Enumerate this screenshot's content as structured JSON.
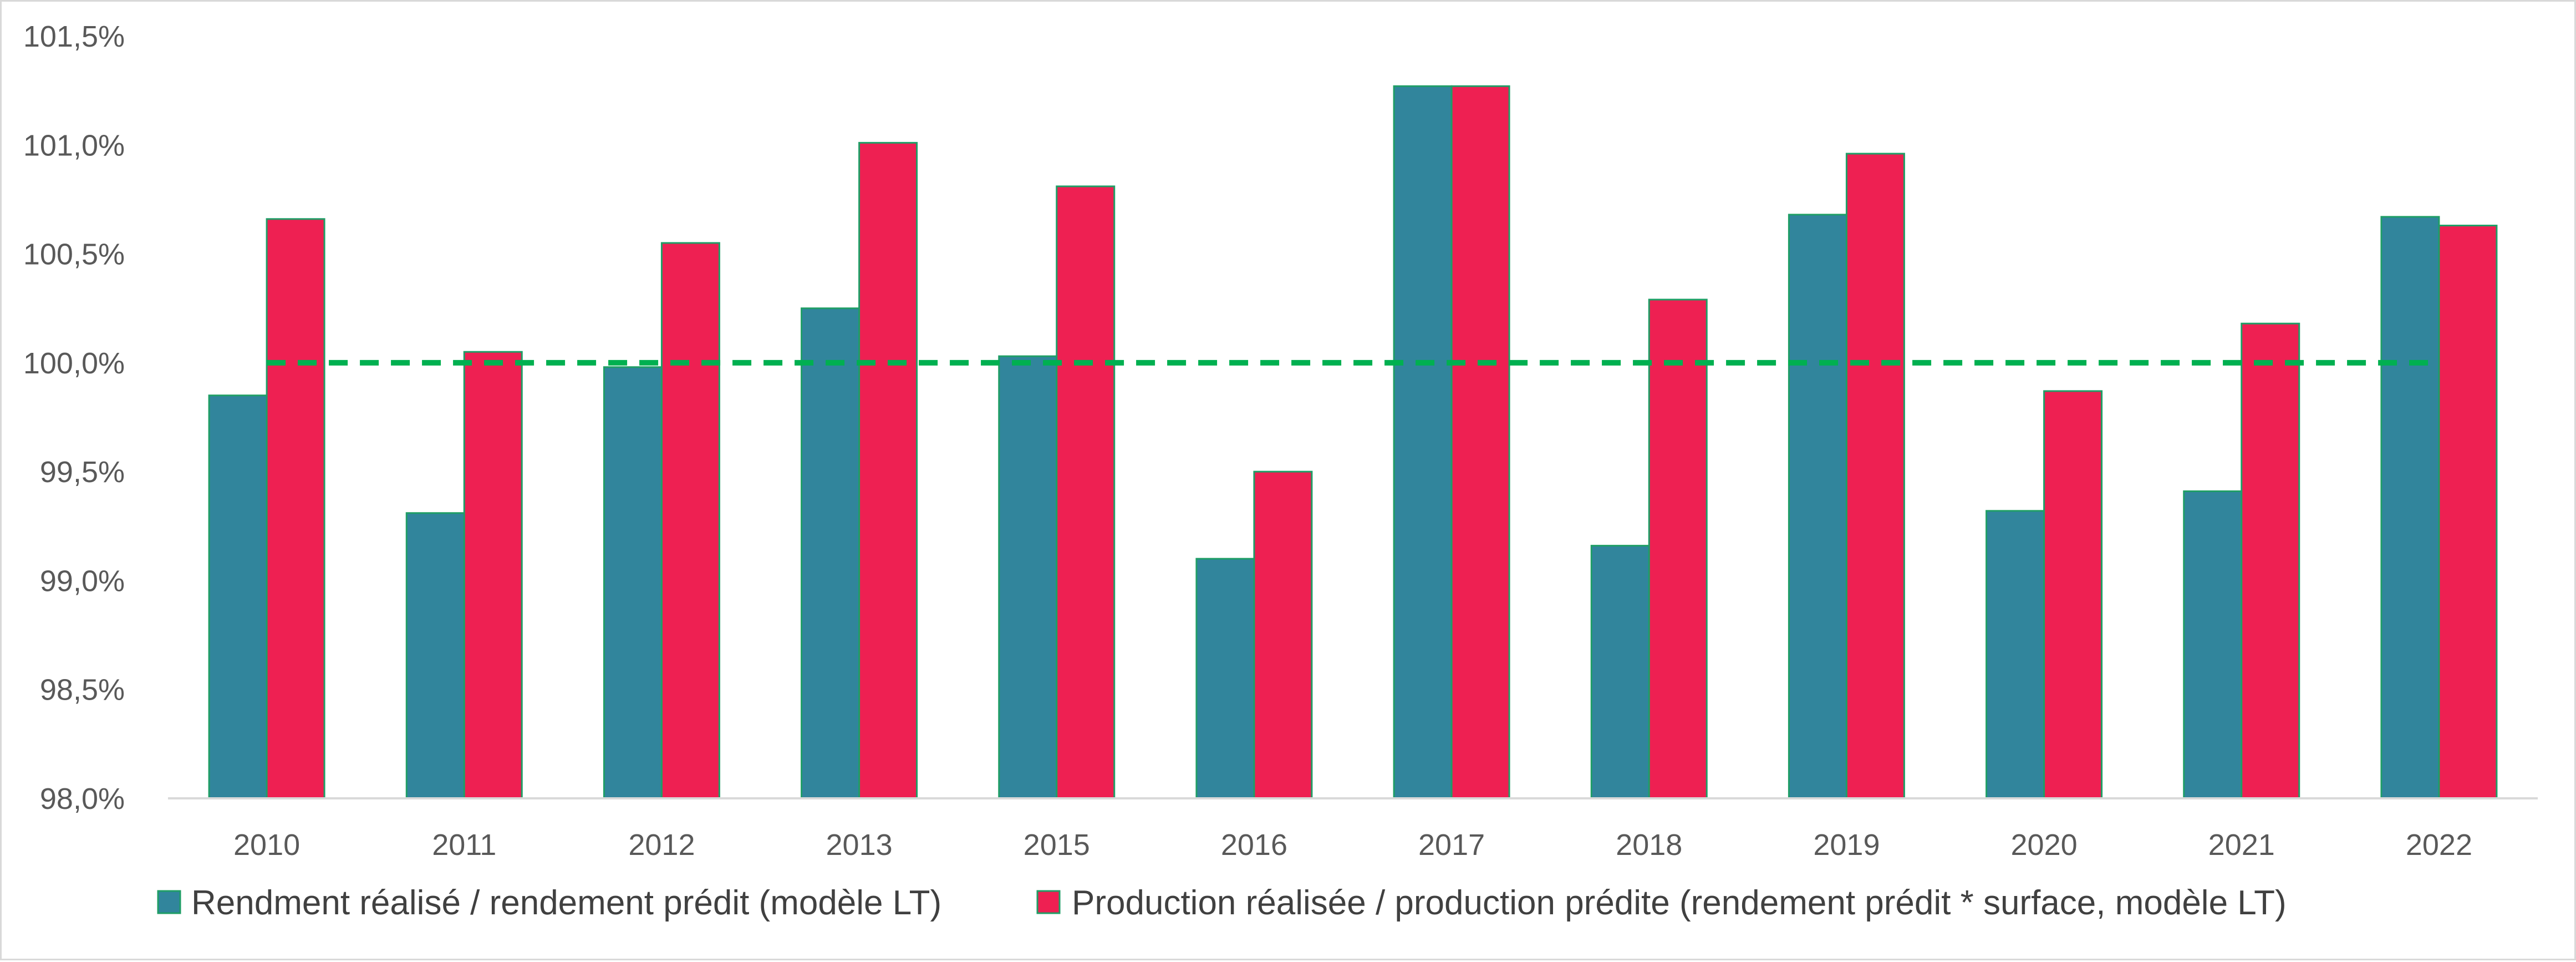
{
  "chart_data": {
    "type": "bar",
    "title": "",
    "xlabel": "",
    "ylabel": "",
    "categories": [
      "2010",
      "2011",
      "2012",
      "2013",
      "2015",
      "2016",
      "2017",
      "2018",
      "2019",
      "2020",
      "2021",
      "2022"
    ],
    "series": [
      {
        "name": "Rendment réalisé / rendement prédit (modèle LT)",
        "color": "#31859C",
        "values": [
          99.85,
          99.31,
          99.98,
          100.25,
          100.03,
          99.1,
          101.27,
          99.16,
          100.68,
          99.32,
          99.41,
          100.67
        ]
      },
      {
        "name": "Production réalisée / production prédite (rendement prédit * surface, modèle LT)",
        "color": "#EE2052",
        "values": [
          100.66,
          100.05,
          100.55,
          101.01,
          100.81,
          99.5,
          101.27,
          100.29,
          100.96,
          99.87,
          100.18,
          100.63
        ]
      }
    ],
    "ylim": [
      98.0,
      101.5
    ],
    "yticks": [
      "98,0%",
      "98,5%",
      "99,0%",
      "99,5%",
      "100,0%",
      "100,5%",
      "101,0%",
      "101,5%"
    ],
    "reference_line": {
      "value": 100.0,
      "color": "#00B050",
      "style": "dashed"
    },
    "bar_outline_color": "#1F9E66",
    "grid": false,
    "legend_position": "bottom"
  }
}
